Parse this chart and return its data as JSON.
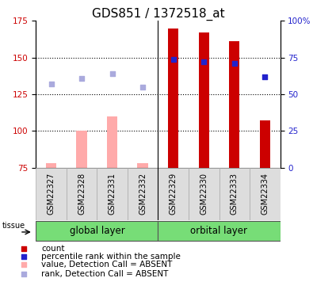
{
  "title": "GDS851 / 1372518_at",
  "samples": [
    "GSM22327",
    "GSM22328",
    "GSM22331",
    "GSM22332",
    "GSM22329",
    "GSM22330",
    "GSM22333",
    "GSM22334"
  ],
  "groups": {
    "global layer": [
      0,
      1,
      2,
      3
    ],
    "orbital layer": [
      4,
      5,
      6,
      7
    ]
  },
  "bar_values": [
    78,
    100,
    110,
    78,
    170,
    167,
    161,
    107
  ],
  "bar_absent": [
    true,
    true,
    true,
    true,
    false,
    false,
    false,
    false
  ],
  "rank_values": [
    132,
    136,
    139,
    130,
    149,
    147,
    146,
    137
  ],
  "rank_absent": [
    true,
    true,
    true,
    true,
    false,
    false,
    false,
    false
  ],
  "ylim_left": [
    75,
    175
  ],
  "ylim_right": [
    0,
    100
  ],
  "yticks_left": [
    75,
    100,
    125,
    150,
    175
  ],
  "yticks_right": [
    0,
    25,
    50,
    75,
    100
  ],
  "bar_color_present": "#cc0000",
  "bar_color_absent": "#ffaaaa",
  "rank_color_present": "#2222cc",
  "rank_color_absent": "#aaaadd",
  "group_color": "#77dd77",
  "title_fontsize": 11,
  "label_fontsize": 8.5,
  "tick_fontsize": 7.5,
  "legend_fontsize": 7.5
}
